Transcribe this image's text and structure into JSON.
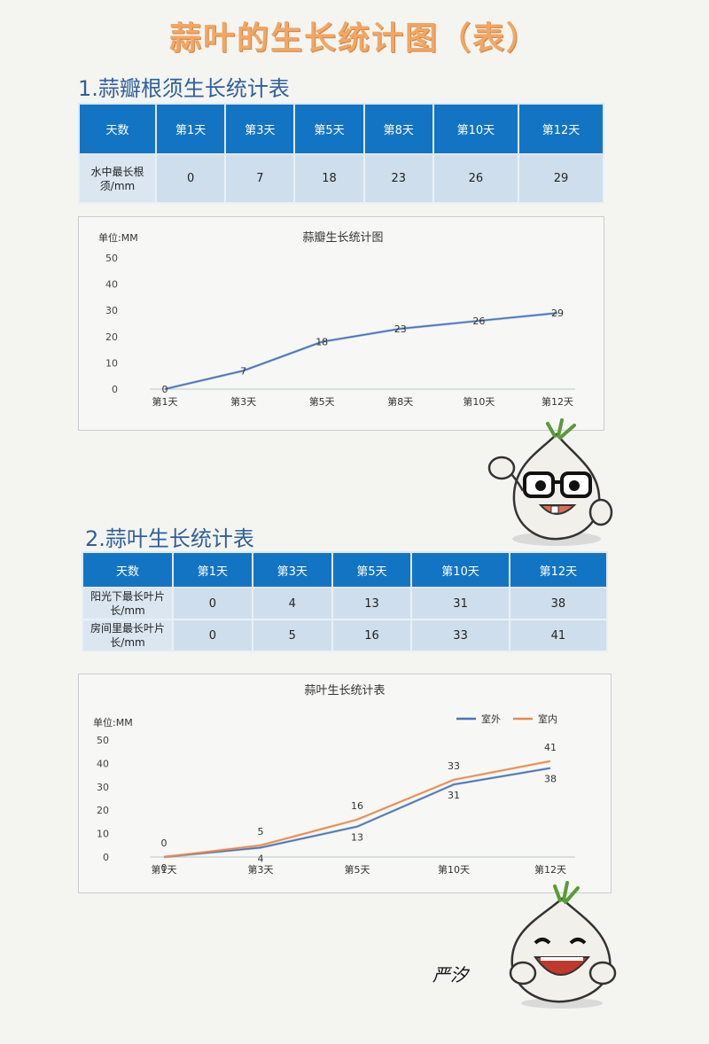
{
  "page_title": "蒜叶的生长统计图（表）",
  "section1": {
    "heading": "1.蒜瓣根须生长统计表",
    "table": {
      "headers": [
        "天数",
        "第1天",
        "第3天",
        "第5天",
        "第8天",
        "第10天",
        "第12天"
      ],
      "row_label": "水中最长根须/mm",
      "values": [
        "0",
        "7",
        "18",
        "23",
        "26",
        "29"
      ]
    }
  },
  "section2": {
    "heading": "2.蒜叶生长统计表",
    "table": {
      "headers": [
        "天数",
        "第1天",
        "第3天",
        "第5天",
        "第10天",
        "第12天"
      ],
      "rows": [
        {
          "label": "阳光下最长叶片长/mm",
          "values": [
            "0",
            "4",
            "13",
            "31",
            "38"
          ]
        },
        {
          "label": "房间里最长叶片长/mm",
          "values": [
            "0",
            "5",
            "16",
            "33",
            "41"
          ]
        }
      ]
    }
  },
  "signature": "严汐",
  "chart_data": [
    {
      "type": "line",
      "title": "蒜瓣生长统计图",
      "ylabel": "单位:MM",
      "categories": [
        "第1天",
        "第3天",
        "第5天",
        "第8天",
        "第10天",
        "第12天"
      ],
      "series": [
        {
          "values": [
            0,
            7,
            18,
            23,
            26,
            29
          ],
          "color": "#4a73b8"
        }
      ],
      "ylim": [
        0,
        50
      ],
      "yticks": [
        0,
        10,
        20,
        30,
        40,
        50
      ],
      "grid": false
    },
    {
      "type": "line",
      "title": "蒜叶生长统计表",
      "ylabel": "单位:MM",
      "categories": [
        "第1天",
        "第3天",
        "第5天",
        "第10天",
        "第12天"
      ],
      "series": [
        {
          "name": "室外",
          "values": [
            0,
            4,
            13,
            31,
            38
          ],
          "color": "#4a73b8"
        },
        {
          "name": "室内",
          "values": [
            0,
            5,
            16,
            33,
            41
          ],
          "color": "#e8894a"
        }
      ],
      "ylim": [
        0,
        50
      ],
      "yticks": [
        0,
        10,
        20,
        30,
        40,
        50
      ],
      "legend": "top-right",
      "grid": false
    }
  ]
}
